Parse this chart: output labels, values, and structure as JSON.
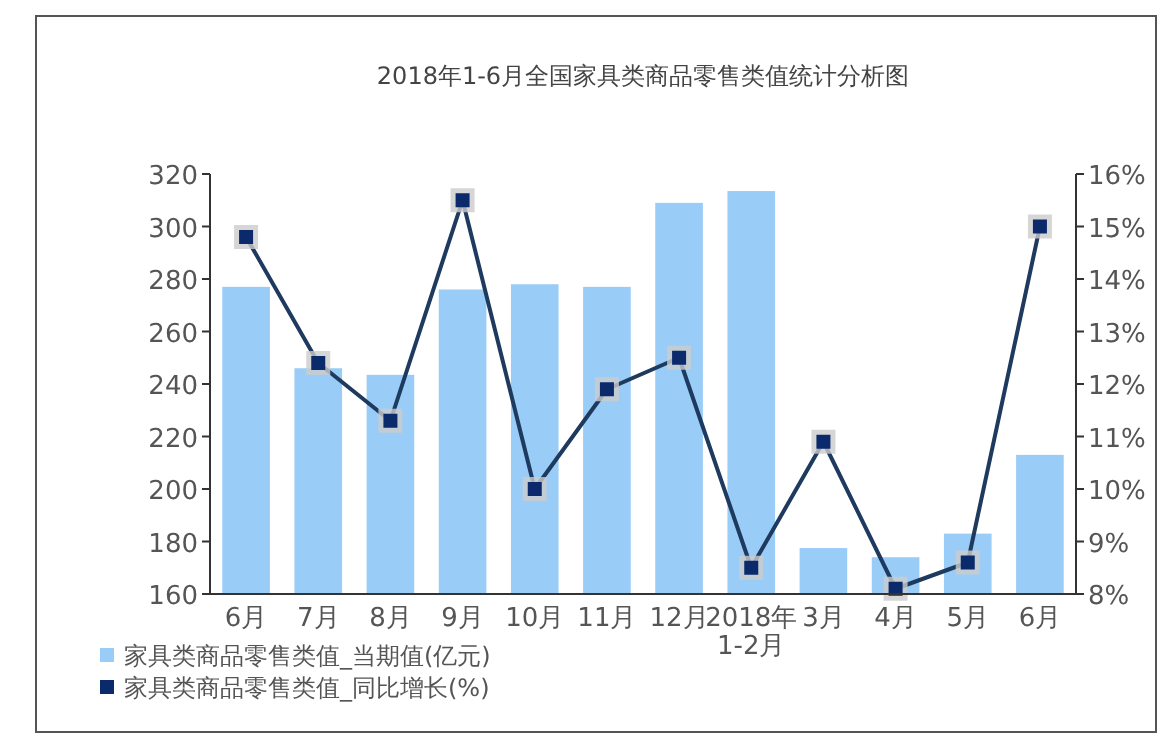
{
  "chart_data": {
    "type": "bar",
    "title": "2018年1-6月全国家具类商品零售类值统计分析图",
    "categories": [
      "6月",
      "7月",
      "8月",
      "9月",
      "10月",
      "11月",
      "12月",
      "2018年\n1-2月",
      "3月",
      "4月",
      "5月",
      "6月"
    ],
    "series": [
      {
        "name": "家具类商品零售类值_当期值(亿元)",
        "color": "#99ccf7",
        "values": [
          277,
          246,
          243.5,
          276,
          278,
          277,
          309,
          313.5,
          177.5,
          174,
          183,
          213
        ]
      },
      {
        "name": "家具类商品零售类值_同比增长(%)",
        "type": "line",
        "axis": "y2",
        "color": "#1f3a5f",
        "marker": "square",
        "values": [
          14.8,
          12.4,
          11.3,
          15.5,
          10.0,
          11.9,
          12.5,
          8.5,
          10.9,
          8.1,
          8.6,
          15.0
        ]
      }
    ],
    "ylim": [
      160,
      320
    ],
    "yticks": [
      160,
      180,
      200,
      220,
      240,
      260,
      280,
      300,
      320
    ],
    "y2lim": [
      8,
      16
    ],
    "y2ticks": [
      {
        "value": 8,
        "label": "8%"
      },
      {
        "value": 9,
        "label": "9%"
      },
      {
        "value": 10,
        "label": "10%"
      },
      {
        "value": 11,
        "label": "11%"
      },
      {
        "value": 12,
        "label": "12%"
      },
      {
        "value": 13,
        "label": "13%"
      },
      {
        "value": 14,
        "label": "14%"
      },
      {
        "value": 15,
        "label": "15%"
      },
      {
        "value": 16,
        "label": "16%"
      }
    ],
    "legend": "bottom left",
    "grid": false
  }
}
